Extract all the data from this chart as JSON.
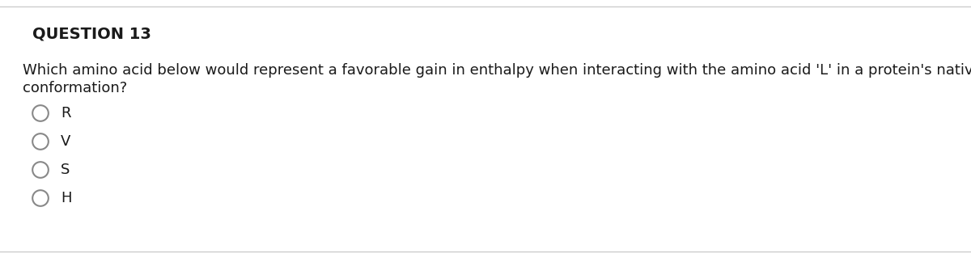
{
  "background_color": "#ffffff",
  "content_background": "#ffffff",
  "title": "QUESTION 13",
  "question_line1": "Which amino acid below would represent a favorable gain in enthalpy when interacting with the amino acid 'L' in a protein's native",
  "question_line2": "conformation?",
  "options": [
    "R",
    "V",
    "S",
    "H"
  ],
  "title_fontsize": 14,
  "question_fontsize": 13,
  "option_fontsize": 13,
  "title_color": "#1a1a1a",
  "question_color": "#1a1a1a",
  "option_color": "#1a1a1a",
  "circle_color": "#888888",
  "top_line_color": "#cccccc",
  "bottom_line_color": "#cccccc"
}
